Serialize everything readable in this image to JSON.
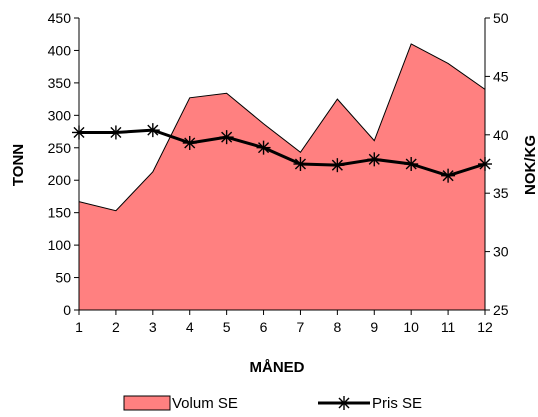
{
  "chart_data": {
    "type": "area",
    "categories": [
      "1",
      "2",
      "3",
      "4",
      "5",
      "6",
      "7",
      "8",
      "9",
      "10",
      "11",
      "12"
    ],
    "series": [
      {
        "name": "Volum SE",
        "type": "area",
        "axis": "left",
        "values": [
          167,
          153,
          213,
          327,
          334,
          287,
          243,
          325,
          261,
          410,
          380,
          340
        ],
        "color": "#ff8080"
      },
      {
        "name": "Pris SE",
        "type": "line",
        "axis": "right",
        "values": [
          40.2,
          40.2,
          40.4,
          39.3,
          39.8,
          38.9,
          37.5,
          37.4,
          37.9,
          37.5,
          36.5,
          37.5
        ],
        "color": "#000000",
        "marker": "asterisk"
      }
    ],
    "xlabel": "MÅNED",
    "ylabel": "TONN",
    "y2label": "NOK/KG",
    "ylim": [
      0,
      450
    ],
    "y2lim": [
      25,
      50
    ],
    "yticks": [
      "0",
      "50",
      "100",
      "150",
      "200",
      "250",
      "300",
      "350",
      "400",
      "450"
    ],
    "y2ticks": [
      "25",
      "30",
      "35",
      "40",
      "45",
      "50"
    ],
    "grid": false,
    "legend_position": "bottom"
  }
}
